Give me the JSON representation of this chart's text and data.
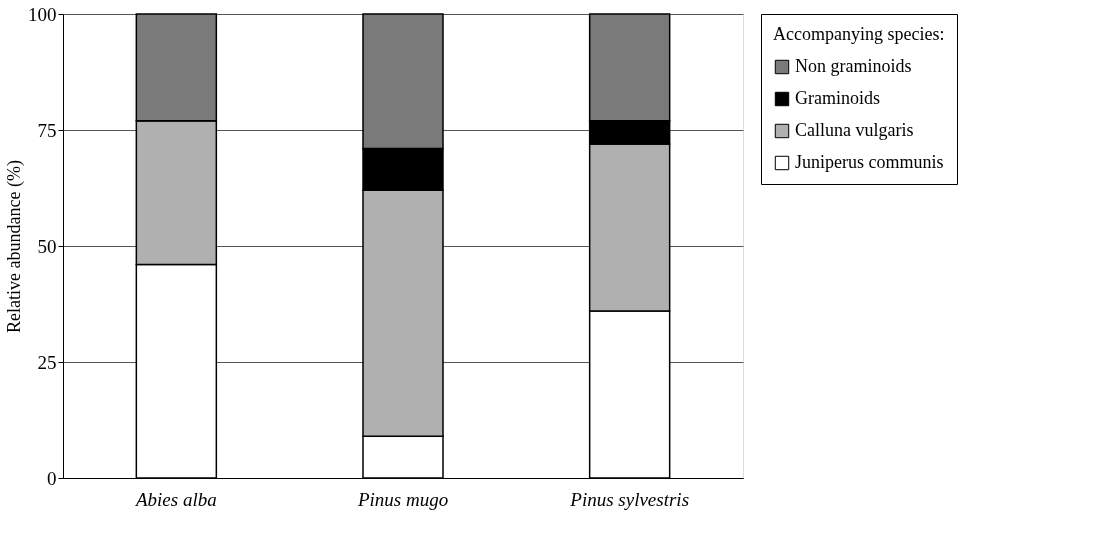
{
  "chart_data": {
    "type": "bar",
    "stacked": true,
    "ylabel": "Relative abundance (%)",
    "legend_title": "Accompanying species:",
    "categories": [
      "Abies alba",
      "Pinus mugo",
      "Pinus sylvestris"
    ],
    "series": [
      {
        "name": "Juniperus communis",
        "color": "#ffffff",
        "values": [
          46,
          9,
          36
        ]
      },
      {
        "name": "Calluna vulgaris",
        "color": "#b0b0b0",
        "values": [
          31,
          53,
          36
        ]
      },
      {
        "name": "Graminoids",
        "color": "#000000",
        "values": [
          0,
          9,
          5
        ]
      },
      {
        "name": "Non graminoids",
        "color": "#7a7a7a",
        "values": [
          23,
          29,
          23
        ]
      }
    ],
    "ylim": [
      0,
      100
    ],
    "yticks": [
      0,
      25,
      50,
      75,
      100
    ],
    "grid": "y",
    "legend": "top right"
  }
}
